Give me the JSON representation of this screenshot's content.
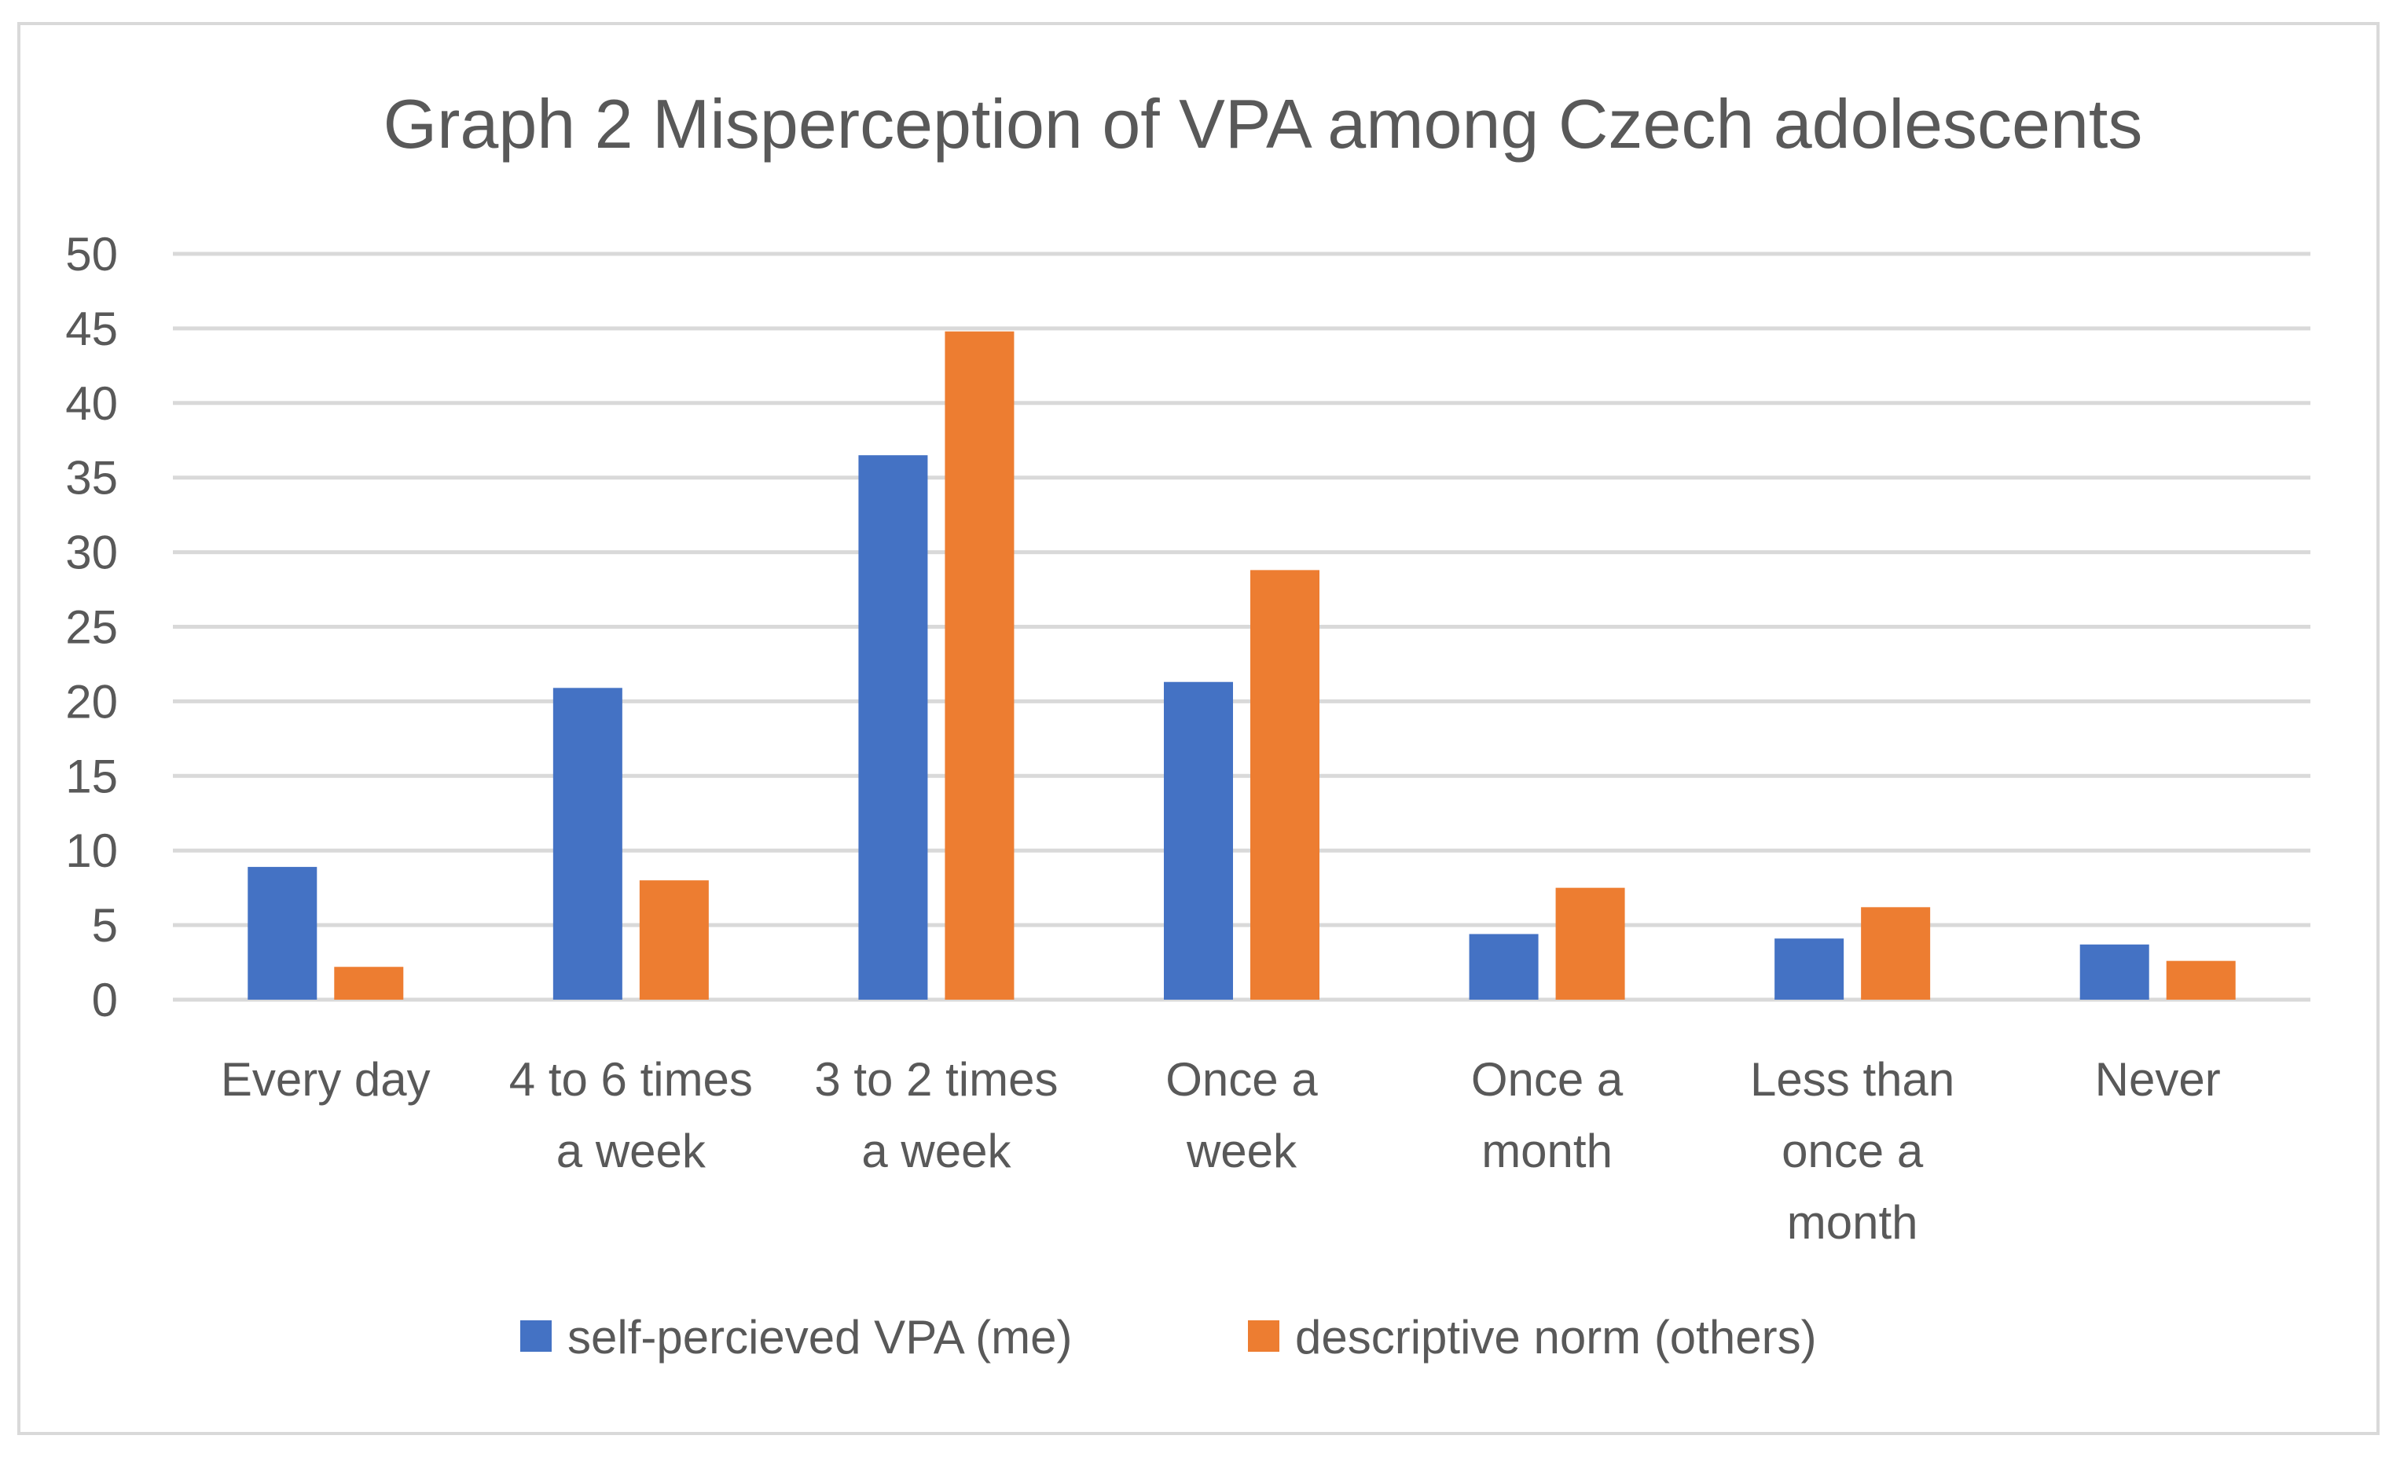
{
  "chart_data": {
    "type": "bar",
    "title": "Graph 2 Misperception of VPA among Czech adolescents",
    "categories": [
      [
        "Every day"
      ],
      [
        "4 to 6 times",
        "a week"
      ],
      [
        "3 to 2 times",
        "a week"
      ],
      [
        "Once a",
        "week"
      ],
      [
        "Once a",
        "month"
      ],
      [
        "Less than",
        "once a",
        "month"
      ],
      [
        "Never"
      ]
    ],
    "series": [
      {
        "name": "self-percieved VPA (me)",
        "color": "#4472c4",
        "values": [
          8.9,
          20.9,
          36.5,
          21.3,
          4.4,
          4.1,
          3.7
        ]
      },
      {
        "name": "descriptive norm (others)",
        "color": "#ed7d31",
        "values": [
          2.2,
          8.0,
          44.8,
          28.8,
          7.5,
          6.2,
          2.6
        ]
      }
    ],
    "ylim": [
      0,
      50
    ],
    "yticks": [
      0,
      5,
      10,
      15,
      20,
      25,
      30,
      35,
      40,
      45,
      50
    ],
    "grid": true,
    "legend_position": "bottom",
    "xlabel": "",
    "ylabel": ""
  }
}
